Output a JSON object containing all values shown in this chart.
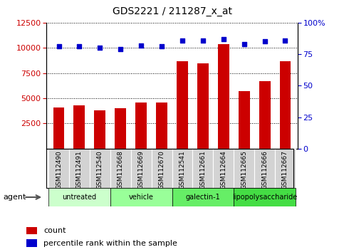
{
  "title": "GDS2221 / 211287_x_at",
  "samples": [
    "GSM112490",
    "GSM112491",
    "GSM112540",
    "GSM112668",
    "GSM112669",
    "GSM112670",
    "GSM112541",
    "GSM112661",
    "GSM112664",
    "GSM112665",
    "GSM112666",
    "GSM112667"
  ],
  "counts": [
    4100,
    4300,
    3800,
    4000,
    4600,
    4600,
    8700,
    8500,
    10400,
    5700,
    6700,
    8700
  ],
  "percentile_ranks": [
    81,
    81,
    80,
    79,
    82,
    81,
    86,
    86,
    87,
    83,
    85,
    86
  ],
  "groups": [
    {
      "label": "untreated",
      "indices": [
        0,
        1,
        2
      ],
      "color": "#ccffcc"
    },
    {
      "label": "vehicle",
      "indices": [
        3,
        4,
        5
      ],
      "color": "#99ff99"
    },
    {
      "label": "galectin-1",
      "indices": [
        6,
        7,
        8
      ],
      "color": "#66ee66"
    },
    {
      "label": "lipopolysaccharide",
      "indices": [
        9,
        10,
        11
      ],
      "color": "#44dd44"
    }
  ],
  "ylim_left": [
    0,
    12500
  ],
  "yticks_left": [
    2500,
    5000,
    7500,
    10000,
    12500
  ],
  "ylim_right": [
    0,
    100
  ],
  "yticks_right": [
    0,
    25,
    50,
    75,
    100
  ],
  "bar_color": "#cc0000",
  "dot_color": "#0000cc",
  "bar_width": 0.55,
  "background_color": "#ffffff",
  "legend_count_label": "count",
  "legend_pct_label": "percentile rank within the sample",
  "agent_label": "agent",
  "sample_bg_color": "#d3d3d3"
}
